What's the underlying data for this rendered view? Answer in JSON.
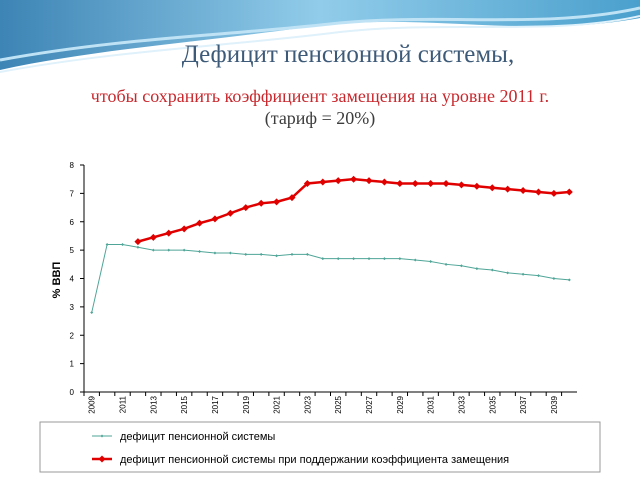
{
  "chart_data": {
    "type": "line",
    "title": "Дефицит пенсионной системы,",
    "subtitle": "чтобы сохранить коэффициент замещения на уровне 2011 г.",
    "note": "(тариф = 20%)",
    "y_label": "% ВВП",
    "categories": [
      "2009",
      null,
      "2011",
      null,
      "2013",
      null,
      "2015",
      null,
      "2017",
      null,
      "2019",
      null,
      "2021",
      null,
      "2023",
      null,
      "2025",
      null,
      "2027",
      null,
      "2029",
      null,
      "2031",
      null,
      "2033",
      null,
      "2035",
      null,
      "2037",
      null,
      "2039",
      null
    ],
    "series": [
      {
        "name": "дефицит пенсионной системы",
        "color": "#4fa597",
        "values": [
          2.8,
          5.2,
          5.2,
          5.1,
          5.0,
          5.0,
          5.0,
          4.95,
          4.9,
          4.9,
          4.85,
          4.85,
          4.8,
          4.85,
          4.85,
          4.7,
          4.7,
          4.7,
          4.7,
          4.7,
          4.7,
          4.65,
          4.6,
          4.5,
          4.45,
          4.35,
          4.3,
          4.2,
          4.15,
          4.1,
          4.0,
          3.95
        ]
      },
      {
        "name": "дефицит пенсионной системы при поддержании коэффициента замещения",
        "color": "#e00000",
        "values": [
          null,
          null,
          null,
          5.3,
          5.45,
          5.6,
          5.75,
          5.95,
          6.1,
          6.3,
          6.5,
          6.65,
          6.7,
          6.85,
          7.35,
          7.4,
          7.45,
          7.5,
          7.45,
          7.4,
          7.35,
          7.35,
          7.35,
          7.35,
          7.3,
          7.25,
          7.2,
          7.15,
          7.1,
          7.05,
          7.0,
          7.05
        ]
      }
    ],
    "ylim": [
      0,
      8
    ],
    "yticks": [
      0,
      1,
      2,
      3,
      4,
      5,
      6,
      7,
      8
    ],
    "grid": false
  }
}
